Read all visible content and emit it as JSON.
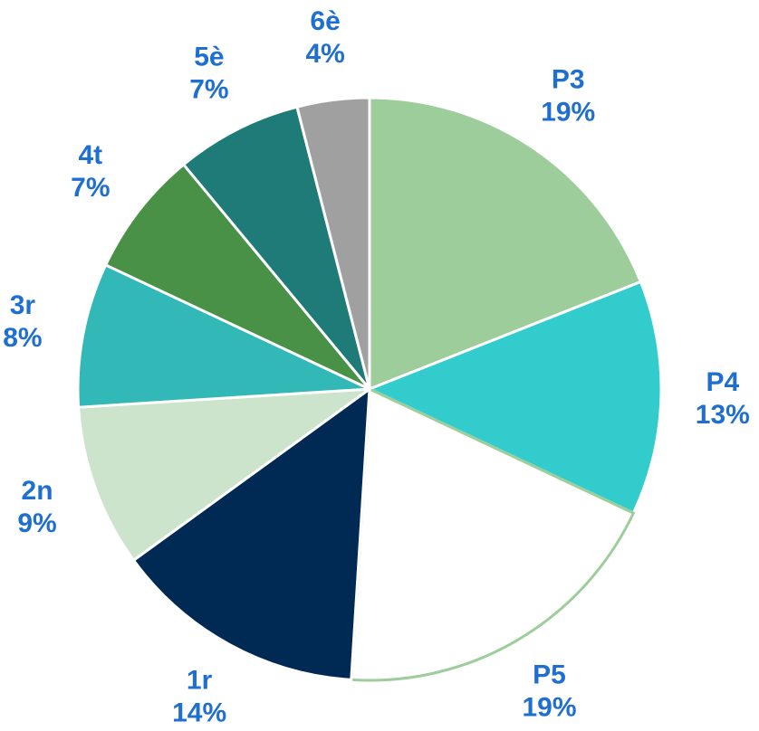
{
  "chart_data": {
    "type": "pie",
    "categories": [
      "P3",
      "P4",
      "P5",
      "1r",
      "2n",
      "3r",
      "4t",
      "5è",
      "6è"
    ],
    "values": [
      19,
      13,
      19,
      14,
      9,
      8,
      7,
      7,
      4
    ],
    "value_labels": [
      "19%",
      "13%",
      "19%",
      "14%",
      "9%",
      "8%",
      "7%",
      "7%",
      "4%"
    ],
    "colors": [
      "#9dcd9b",
      "#33cccc",
      "#ffffff",
      "#002a54",
      "#cce3cc",
      "#33b8b8",
      "#4a9148",
      "#1f7b78",
      "#a0a0a0"
    ]
  }
}
